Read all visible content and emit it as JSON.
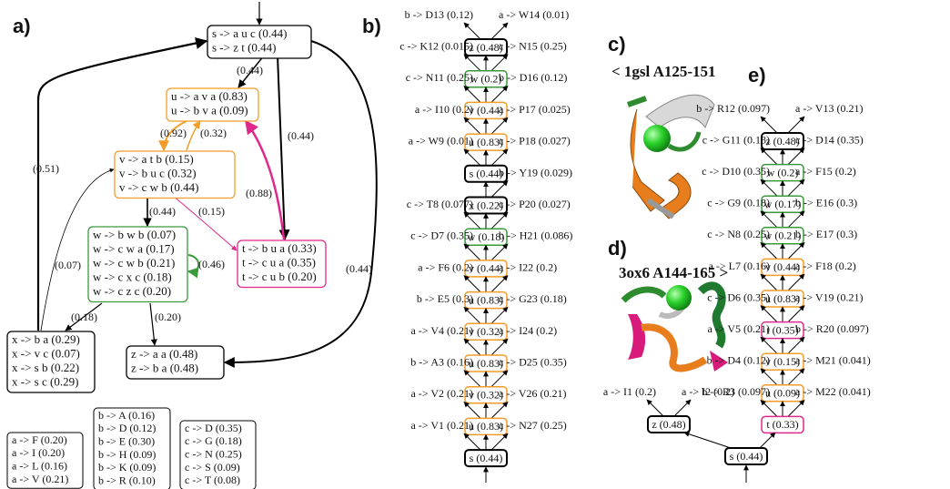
{
  "panel_a": {
    "label": "a)",
    "nodes": [
      {
        "lines": [
          "s -> a u c (0.44)",
          "s -> z t (0.44)"
        ],
        "color": "#000000"
      },
      {
        "lines": [
          "u -> a v a (0.83)",
          "u -> b v a (0.09)"
        ],
        "color": "#f39c28"
      },
      {
        "lines": [
          "v -> a t b (0.15)",
          "v -> b u c (0.32)",
          "v -> c w b (0.44)"
        ],
        "color": "#f39c28"
      },
      {
        "lines": [
          "w -> b w b (0.07)",
          "w -> c w a (0.17)",
          "w -> c w b (0.21)",
          "w -> c x c (0.18)",
          "w -> c z c (0.20)"
        ],
        "color": "#3a9a3a"
      },
      {
        "lines": [
          "t -> b u a (0.33)",
          "t -> c u a (0.35)",
          "t -> c u b (0.20)"
        ],
        "color": "#e0288c"
      },
      {
        "lines": [
          "x -> b a (0.29)",
          "x -> v c (0.07)",
          "x -> s b (0.22)",
          "x -> s c (0.29)"
        ],
        "color": "#000000"
      },
      {
        "lines": [
          "z -> a a (0.48)",
          "z -> b a (0.48)"
        ],
        "color": "#000000"
      }
    ],
    "edge_labels": [
      "(0.44)",
      "(0.92)",
      "(0.32)",
      "(0.44)",
      "(0.88)",
      "(0.44)",
      "(0.51)",
      "(0.44)",
      "(0.15)",
      "(0.46)",
      "(0.07)",
      "(0.18)",
      "(0.20)"
    ],
    "rule_boxes": [
      [
        "a -> F (0.20)",
        "a -> I (0.20)",
        "a -> L (0.16)",
        "a -> V (0.21)"
      ],
      [
        "b -> A (0.16)",
        "b -> D (0.12)",
        "b -> E (0.30)",
        "b -> H (0.09)",
        "b -> K (0.09)",
        "b -> R (0.10)"
      ],
      [
        "c -> D (0.35)",
        "c -> G (0.18)",
        "c -> N (0.25)",
        "c -> S (0.09)",
        "c -> T (0.08)"
      ]
    ]
  },
  "panel_b": {
    "label": "b)",
    "nodes": [
      {
        "text": "z (0.48)",
        "color": "#000000",
        "left": "b -> D13 (0.12)",
        "right": "a -> W14 (0.01)"
      },
      {
        "text": "w (0.2)",
        "color": "#3a9a3a",
        "left": "c -> K12 (0.015)",
        "right": "c -> N15 (0.25)"
      },
      {
        "text": "v (0.44)",
        "color": "#f39c28",
        "left": "c -> N11 (0.25)",
        "right": "b -> D16 (0.12)"
      },
      {
        "text": "u (0.83)",
        "color": "#f39c28",
        "left": "a -> I10 (0.2)",
        "right": "a -> P17 (0.025)"
      },
      {
        "text": "s (0.44)",
        "color": "#000000",
        "left": "a -> W9 (0.01)",
        "right": "c -> P18 (0.027)"
      },
      {
        "text": "x (0.22)",
        "color": "#000000",
        "right": "b -> Y19 (0.029)"
      },
      {
        "text": "w (0.18)",
        "color": "#3a9a3a",
        "left": "c -> T8 (0.077)",
        "right": "c -> P20 (0.027)"
      },
      {
        "text": "v (0.44)",
        "color": "#f39c28",
        "left": "c -> D7 (0.35)",
        "right": "b -> H21 (0.086)"
      },
      {
        "text": "u (0.83)",
        "color": "#f39c28",
        "left": "a -> F6 (0.2)",
        "right": "a -> I22 (0.2)"
      },
      {
        "text": "v (0.32)",
        "color": "#f39c28",
        "left": "b -> E5 (0.3)",
        "right": "c -> G23 (0.18)"
      },
      {
        "text": "u (0.83)",
        "color": "#f39c28",
        "left": "a -> V4 (0.21)",
        "right": "a -> I24 (0.2)"
      },
      {
        "text": "v (0.32)",
        "color": "#f39c28",
        "left": "b -> A3 (0.16)",
        "right": "c -> D25 (0.35)"
      },
      {
        "text": "u (0.83)",
        "color": "#f39c28",
        "left": "a -> V2 (0.21)",
        "right": "a -> V26 (0.21)"
      },
      {
        "text": "s (0.44)",
        "color": "#000000",
        "left": "a -> V1 (0.21)",
        "right": "c -> N27 (0.25)"
      }
    ]
  },
  "panel_c": {
    "label": "c)",
    "caption": "< 1gsl A125-151"
  },
  "panel_d": {
    "label": "d)",
    "caption": "3ox6 A144-165 >"
  },
  "panel_e": {
    "label": "e)",
    "nodes": [
      {
        "text": "z (0.48)",
        "color": "#000000",
        "left": "b -> R12 (0.097)",
        "right": "a -> V13 (0.21)"
      },
      {
        "text": "w (0.2)",
        "color": "#3a9a3a",
        "left": "c -> G11 (0.18)",
        "right": "c -> D14 (0.35)"
      },
      {
        "text": "w (0.17)",
        "color": "#3a9a3a",
        "left": "c -> D10 (0.35)",
        "right": "a -> F15 (0.2)"
      },
      {
        "text": "w (0.21)",
        "color": "#3a9a3a",
        "left": "c -> G9 (0.18)",
        "right": "b -> E16 (0.3)"
      },
      {
        "text": "v (0.44)",
        "color": "#f39c28",
        "left": "c -> N8 (0.25)",
        "right": "b -> E17 (0.3)"
      },
      {
        "text": "u (0.83)",
        "color": "#f39c28",
        "left": "a -> L7 (0.16)",
        "right": "a -> F18 (0.2)"
      },
      {
        "text": "t (0.35)",
        "color": "#e0288c",
        "left": "c -> D6 (0.35)",
        "right": "a -> V19 (0.21)"
      },
      {
        "text": "v (0.15)",
        "color": "#f39c28",
        "left": "a -> V5 (0.21)",
        "right": "b -> R20 (0.097)"
      },
      {
        "text": "u (0.09)",
        "color": "#f39c28",
        "left": "b -> D4 (0.12)",
        "right": "a -> M21 (0.041)"
      },
      {
        "text": "t (0.33)",
        "color": "#e0288c",
        "left": "b -> R3 (0.097)",
        "right": "a -> M22 (0.041)"
      }
    ],
    "side_node": {
      "text": "z (0.48)",
      "color": "#000000",
      "left": "a -> I1 (0.2)",
      "right": "a -> I2 (0.2)"
    },
    "root": {
      "text": "s (0.44)",
      "color": "#000000"
    }
  }
}
